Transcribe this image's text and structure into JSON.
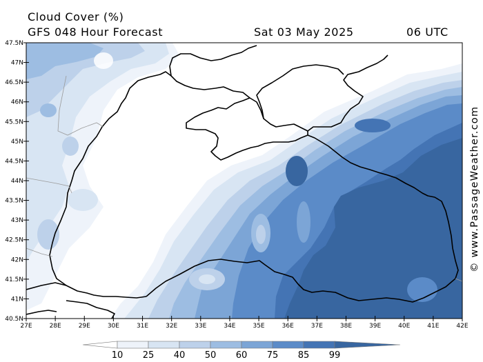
{
  "header": {
    "title": "Cloud Cover (%)",
    "subtitle": "GFS 048 Hour Forecast",
    "date": "Sat 03 May 2025",
    "time": "06 UTC"
  },
  "credit": "© www.PassageWeather.com",
  "axes": {
    "lon_labels": [
      "27E",
      "28E",
      "29E",
      "30E",
      "31E",
      "32E",
      "33E",
      "34E",
      "35E",
      "36E",
      "37E",
      "38E",
      "39E",
      "40E",
      "41E",
      "42E"
    ],
    "lat_labels": [
      "47.5N",
      "47N",
      "46.5N",
      "46N",
      "45.5N",
      "45N",
      "44.5N",
      "44N",
      "43.5N",
      "43N",
      "42.5N",
      "42N",
      "41.5N",
      "41N",
      "40.5N"
    ],
    "lon_range": [
      27,
      42
    ],
    "lat_range": [
      40.5,
      47.5
    ]
  },
  "legend": {
    "bins": [
      {
        "label": "",
        "color": "#ffffff"
      },
      {
        "label": "10",
        "color": "#eef3fa"
      },
      {
        "label": "25",
        "color": "#d8e5f3"
      },
      {
        "label": "40",
        "color": "#bdd1ea"
      },
      {
        "label": "50",
        "color": "#9dbde2"
      },
      {
        "label": "60",
        "color": "#7ca5d6"
      },
      {
        "label": "75",
        "color": "#5b8bc8"
      },
      {
        "label": "85",
        "color": "#4474b4"
      },
      {
        "label": "99",
        "color": "#3866a0"
      }
    ]
  },
  "colors": {
    "background": "#ffffff",
    "coastline": "#000000",
    "borders": "#9a9a9a"
  }
}
